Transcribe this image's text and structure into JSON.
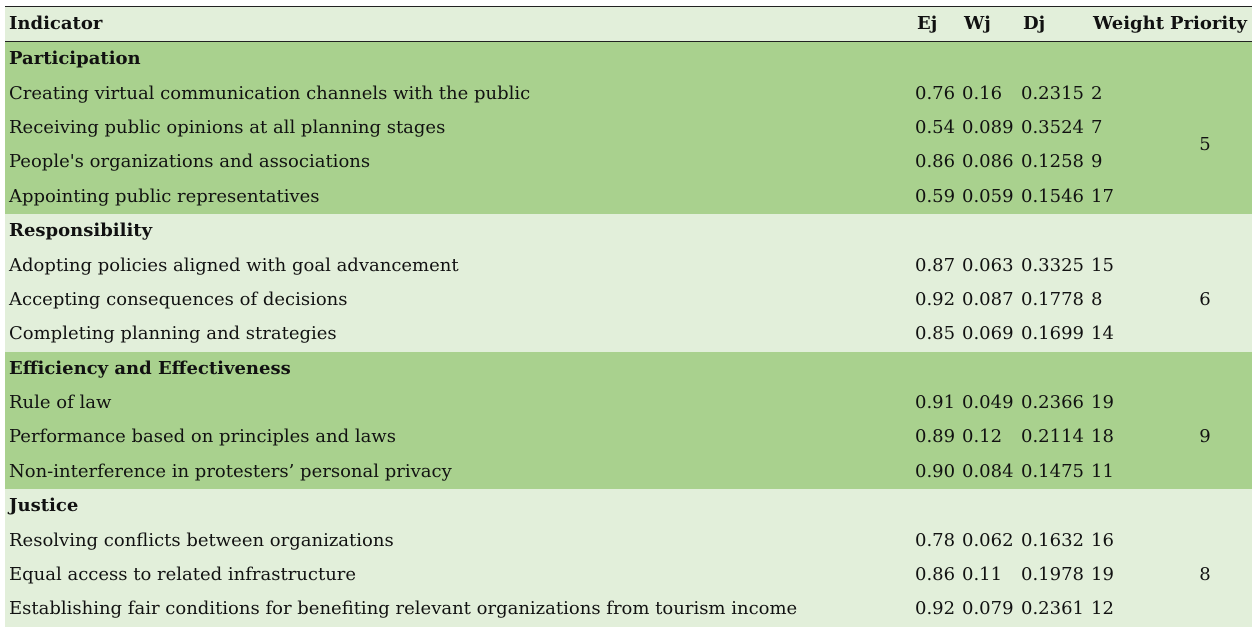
{
  "headers": {
    "indicator": "Indicator",
    "ej": "Ej",
    "wj": "Wj",
    "dj": "Dj",
    "weight": "Weight",
    "priority": "Priority"
  },
  "groups": [
    {
      "name": "Participation",
      "priority": "5",
      "rows": [
        {
          "indicator": "Creating virtual communication channels with the public",
          "ej": "0.76",
          "wj": "0.16",
          "dj": "0.2315",
          "weight": "2"
        },
        {
          "indicator": "Receiving public opinions at all planning stages",
          "ej": "0.54",
          "wj": "0.089",
          "dj": "0.3524",
          "weight": "7"
        },
        {
          "indicator": "People's organizations and associations",
          "ej": "0.86",
          "wj": "0.086",
          "dj": "0.1258",
          "weight": "9"
        },
        {
          "indicator": "Appointing public representatives",
          "ej": "0.59",
          "wj": "0.059",
          "dj": "0.1546",
          "weight": "17"
        }
      ]
    },
    {
      "name": "Responsibility",
      "priority": "6",
      "rows": [
        {
          "indicator": "Adopting policies aligned with goal advancement",
          "ej": "0.87",
          "wj": "0.063",
          "dj": "0.3325",
          "weight": "15"
        },
        {
          "indicator": "Accepting consequences of decisions",
          "ej": "0.92",
          "wj": "0.087",
          "dj": "0.1778",
          "weight": "8"
        },
        {
          "indicator": "Completing planning and strategies",
          "ej": "0.85",
          "wj": "0.069",
          "dj": "0.1699",
          "weight": "14"
        }
      ]
    },
    {
      "name": "Efficiency and Effectiveness",
      "priority": "9",
      "rows": [
        {
          "indicator": "Rule of law",
          "ej": "0.91",
          "wj": "0.049",
          "dj": "0.2366",
          "weight": "19"
        },
        {
          "indicator": "Performance based on principles and laws",
          "ej": "0.89",
          "wj": "0.12",
          "dj": "0.2114",
          "weight": "18"
        },
        {
          "indicator": "Non-interference in protesters’ personal privacy",
          "ej": "0.90",
          "wj": "0.084",
          "dj": "0.1475",
          "weight": "11"
        }
      ]
    },
    {
      "name": "Justice",
      "priority": "8",
      "rows": [
        {
          "indicator": "Resolving conflicts between organizations",
          "ej": "0.78",
          "wj": "0.062",
          "dj": "0.1632",
          "weight": "16"
        },
        {
          "indicator": "Equal access to related infrastructure",
          "ej": "0.86",
          "wj": "0.11",
          "dj": "0.1978",
          "weight": "19"
        },
        {
          "indicator": "Establishing fair conditions for benefiting relevant organizations from tourism income",
          "ej": "0.92",
          "wj": "0.079",
          "dj": "0.2361",
          "weight": "12"
        }
      ]
    }
  ],
  "colors": {
    "band_dark": "#a9d18e",
    "band_light": "#e2efda",
    "rule": "#222222"
  }
}
